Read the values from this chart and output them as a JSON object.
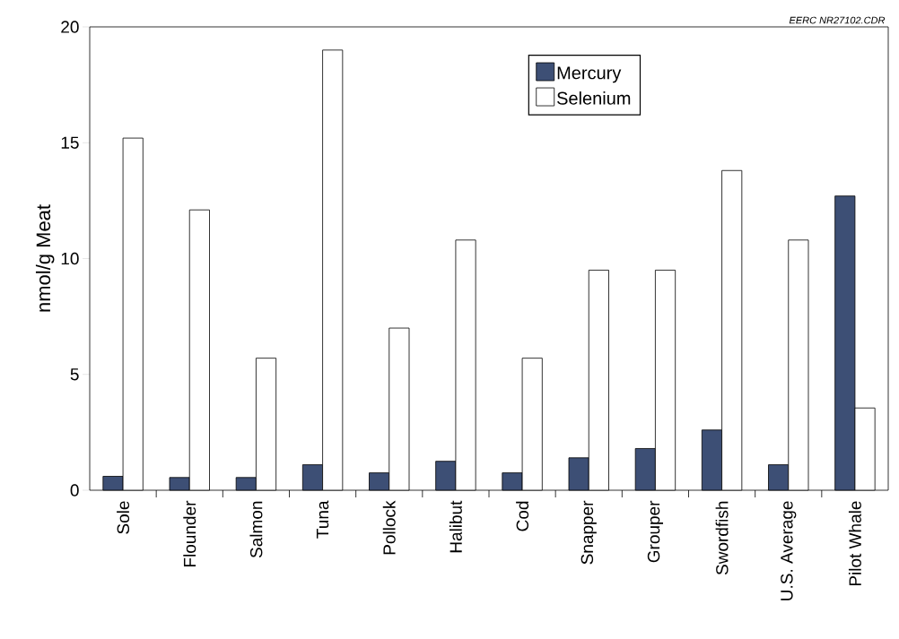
{
  "chart_data": {
    "type": "bar",
    "ylabel": "nmol/g Meat",
    "categories": [
      "Sole",
      "Flounder",
      "Salmon",
      "Tuna",
      "Pollock",
      "Halibut",
      "Cod",
      "Snapper",
      "Grouper",
      "Swordfish",
      "U.S. Average",
      "Pilot Whale"
    ],
    "series": [
      {
        "name": "Mercury",
        "color": "#3d4f75",
        "values": [
          0.6,
          0.55,
          0.55,
          1.1,
          0.75,
          1.25,
          0.75,
          1.4,
          1.8,
          2.6,
          1.1,
          12.7
        ]
      },
      {
        "name": "Selenium",
        "color": "#ffffff",
        "values": [
          15.2,
          12.1,
          5.7,
          19.0,
          7.0,
          10.8,
          5.7,
          9.5,
          9.5,
          13.8,
          10.8,
          3.55
        ]
      }
    ],
    "ylim": [
      0,
      20
    ],
    "yticks": [
      0,
      5,
      10,
      15,
      20
    ],
    "grid": false,
    "legend": "top right",
    "annotations": [
      "EERC NR27102.CDR"
    ]
  }
}
